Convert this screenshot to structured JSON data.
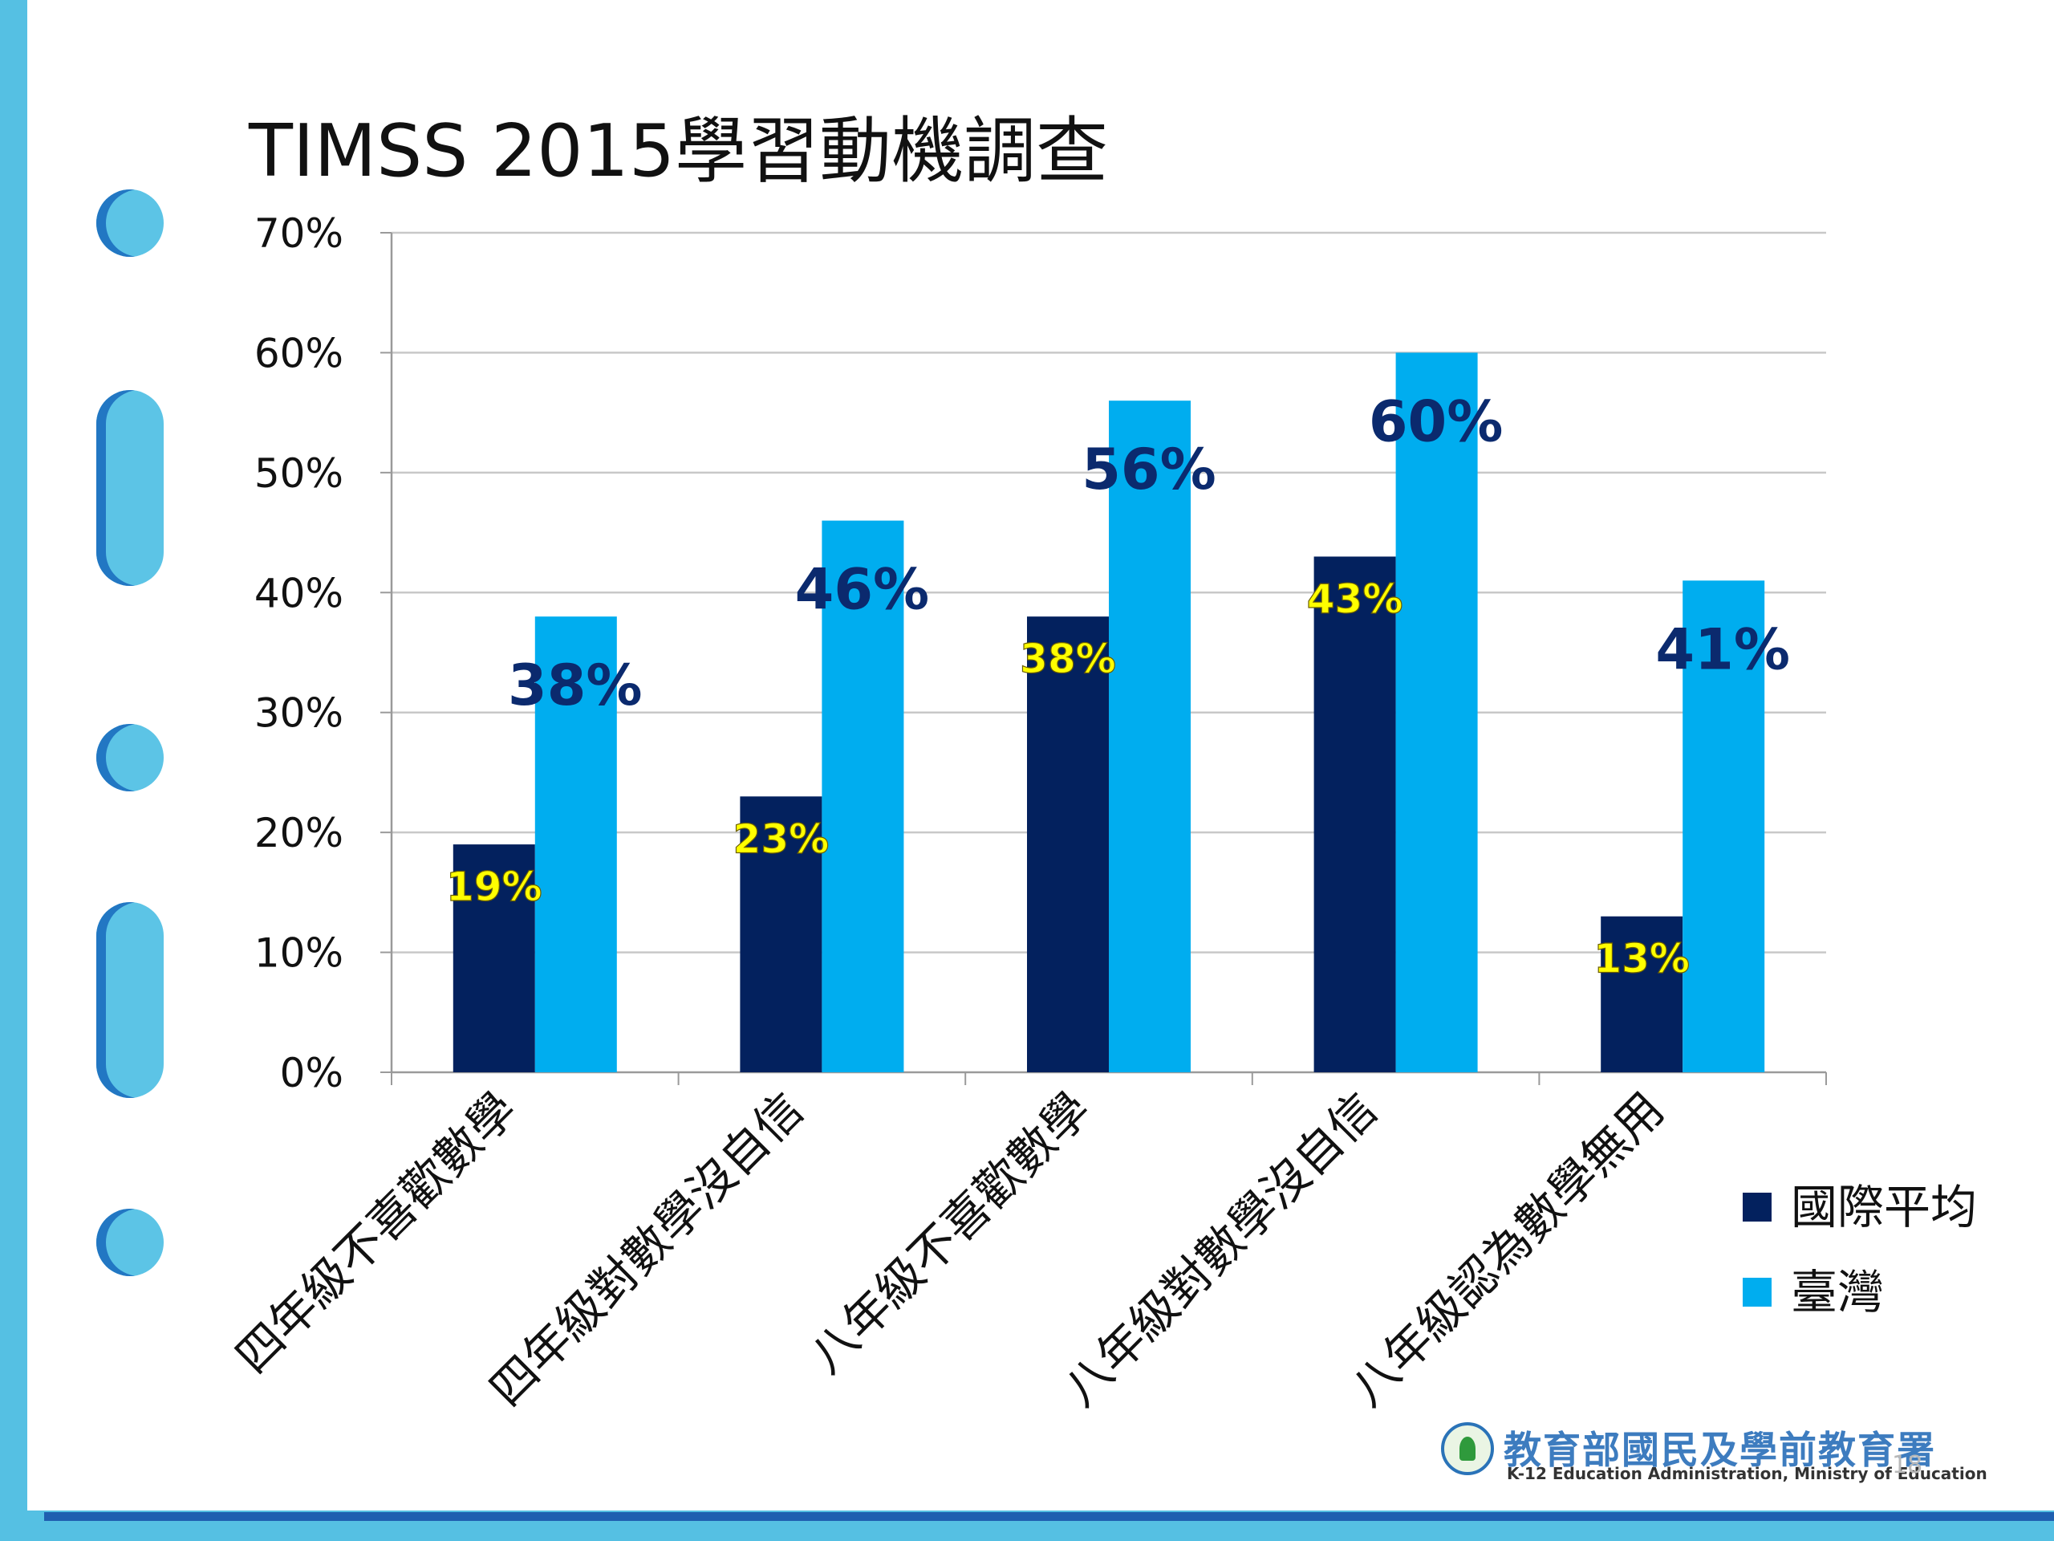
{
  "slide": {
    "title": "TIMSS 2015學習動機調查",
    "page_number": "18"
  },
  "footer": {
    "org_cn": "教育部國民及學前教育署",
    "org_en": "K-12 Education Administration, Ministry of Education"
  },
  "colors": {
    "international": "#03215e",
    "taiwan": "#00adef",
    "inner_label": "#ffff00",
    "outer_label": "#0b2a6e",
    "accent": "#55c0e3"
  },
  "chart_data": {
    "type": "bar",
    "categories": [
      "四年級不喜歡數學",
      "四年級對數學沒自信",
      "八年級不喜歡數學",
      "八年級對數學沒自信",
      "八年級認為數學無用"
    ],
    "series": [
      {
        "name": "國際平均",
        "values": [
          19,
          23,
          38,
          43,
          13
        ],
        "labels": [
          "19%",
          "23%",
          "38%",
          "43%",
          "13%"
        ]
      },
      {
        "name": "臺灣",
        "values": [
          38,
          46,
          56,
          60,
          41
        ],
        "labels": [
          "38%",
          "46%",
          "56%",
          "60%",
          "41%"
        ]
      }
    ],
    "ylim": [
      0,
      70
    ],
    "yticks": [
      0,
      10,
      20,
      30,
      40,
      50,
      60,
      70
    ],
    "ytick_labels": [
      "0%",
      "10%",
      "20%",
      "30%",
      "40%",
      "50%",
      "60%",
      "70%"
    ],
    "grid": true,
    "legend": "right"
  }
}
